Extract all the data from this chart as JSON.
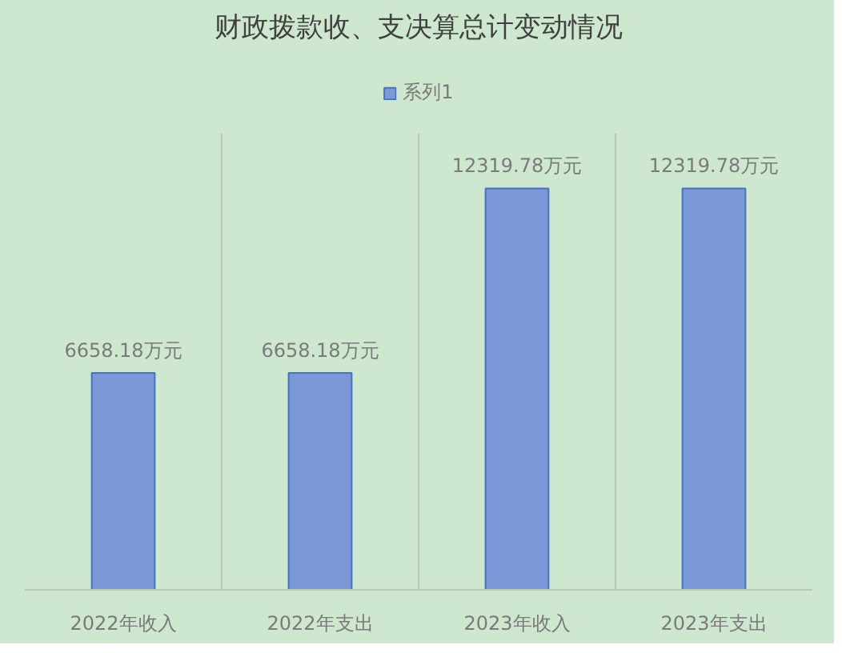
{
  "chart_data": {
    "type": "bar",
    "title": "财政拨款收、支决算总计变动情况",
    "categories": [
      "2022年收入",
      "2022年支出",
      "2023年收入",
      "2023年支出"
    ],
    "series": [
      {
        "name": "系列1",
        "color": "#7d98d6",
        "values": [
          6658.18,
          6658.18,
          12319.78,
          12319.78
        ],
        "value_labels": [
          "6658.18万元",
          "6658.18万元",
          "12319.78万元",
          "12319.78万元"
        ]
      }
    ],
    "ylim": [
      0,
      14000
    ],
    "tick_labels": "x",
    "grid": "x",
    "legend": "top"
  }
}
